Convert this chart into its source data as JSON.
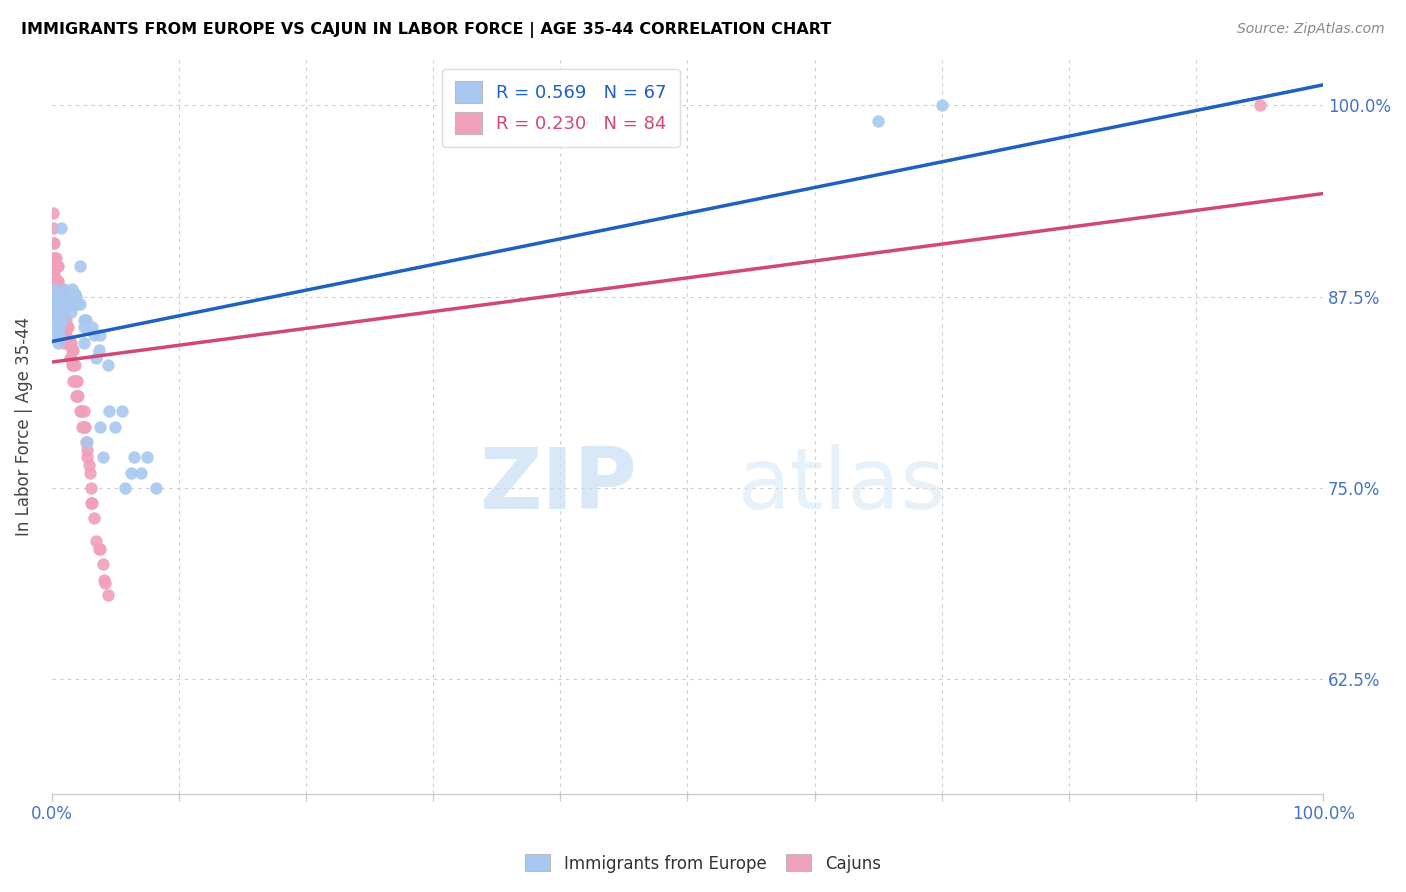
{
  "title": "IMMIGRANTS FROM EUROPE VS CAJUN IN LABOR FORCE | AGE 35-44 CORRELATION CHART",
  "source": "Source: ZipAtlas.com",
  "ylabel": "In Labor Force | Age 35-44",
  "xlim": [
    0.0,
    1.0
  ],
  "ylim": [
    0.55,
    1.03
  ],
  "watermark_zip": "ZIP",
  "watermark_atlas": "atlas",
  "legend_blue_r": "R = 0.569",
  "legend_blue_n": "N = 67",
  "legend_pink_r": "R = 0.230",
  "legend_pink_n": "N = 84",
  "blue_color": "#a8c8f0",
  "pink_color": "#f0a0b8",
  "blue_line_color": "#2060c0",
  "pink_line_color": "#d04878",
  "blue_scatter_x": [
    0.0,
    0.0,
    0.0,
    0.001,
    0.001,
    0.001,
    0.001,
    0.002,
    0.002,
    0.002,
    0.003,
    0.003,
    0.003,
    0.004,
    0.004,
    0.005,
    0.005,
    0.005,
    0.006,
    0.006,
    0.007,
    0.007,
    0.008,
    0.008,
    0.01,
    0.01,
    0.01,
    0.012,
    0.013,
    0.013,
    0.015,
    0.015,
    0.015,
    0.016,
    0.017,
    0.018,
    0.018,
    0.018,
    0.019,
    0.02,
    0.022,
    0.022,
    0.025,
    0.025,
    0.025,
    0.026,
    0.027,
    0.028,
    0.032,
    0.033,
    0.035,
    0.037,
    0.038,
    0.038,
    0.04,
    0.044,
    0.045,
    0.05,
    0.055,
    0.058,
    0.062,
    0.065,
    0.07,
    0.075,
    0.082,
    0.65,
    0.7
  ],
  "blue_scatter_y": [
    0.875,
    0.875,
    0.875,
    0.88,
    0.875,
    0.87,
    0.865,
    0.87,
    0.865,
    0.86,
    0.86,
    0.855,
    0.85,
    0.86,
    0.855,
    0.858,
    0.852,
    0.845,
    0.855,
    0.85,
    0.92,
    0.86,
    0.875,
    0.86,
    0.88,
    0.87,
    0.865,
    0.875,
    0.875,
    0.87,
    0.875,
    0.87,
    0.865,
    0.88,
    0.876,
    0.877,
    0.875,
    0.87,
    0.875,
    0.87,
    0.895,
    0.87,
    0.86,
    0.855,
    0.845,
    0.86,
    0.86,
    0.78,
    0.855,
    0.85,
    0.835,
    0.84,
    0.85,
    0.79,
    0.77,
    0.83,
    0.8,
    0.79,
    0.8,
    0.75,
    0.76,
    0.77,
    0.76,
    0.77,
    0.75,
    0.99,
    1.0
  ],
  "pink_scatter_x": [
    0.0,
    0.0,
    0.0,
    0.0,
    0.001,
    0.001,
    0.001,
    0.001,
    0.001,
    0.002,
    0.002,
    0.002,
    0.002,
    0.003,
    0.003,
    0.003,
    0.003,
    0.003,
    0.004,
    0.004,
    0.004,
    0.005,
    0.005,
    0.005,
    0.005,
    0.006,
    0.006,
    0.006,
    0.007,
    0.007,
    0.007,
    0.008,
    0.008,
    0.008,
    0.009,
    0.009,
    0.01,
    0.01,
    0.01,
    0.011,
    0.011,
    0.012,
    0.012,
    0.013,
    0.013,
    0.014,
    0.014,
    0.015,
    0.015,
    0.016,
    0.016,
    0.017,
    0.017,
    0.017,
    0.018,
    0.018,
    0.019,
    0.019,
    0.02,
    0.02,
    0.021,
    0.022,
    0.023,
    0.024,
    0.025,
    0.025,
    0.026,
    0.027,
    0.028,
    0.028,
    0.029,
    0.03,
    0.031,
    0.031,
    0.032,
    0.033,
    0.035,
    0.037,
    0.038,
    0.04,
    0.041,
    0.042,
    0.044,
    0.95
  ],
  "pink_scatter_y": [
    0.875,
    0.875,
    0.87,
    0.865,
    0.93,
    0.92,
    0.91,
    0.9,
    0.89,
    0.91,
    0.9,
    0.89,
    0.88,
    0.9,
    0.895,
    0.885,
    0.88,
    0.87,
    0.895,
    0.885,
    0.875,
    0.895,
    0.885,
    0.875,
    0.865,
    0.88,
    0.875,
    0.865,
    0.88,
    0.87,
    0.86,
    0.875,
    0.865,
    0.855,
    0.86,
    0.85,
    0.865,
    0.855,
    0.845,
    0.86,
    0.85,
    0.855,
    0.845,
    0.855,
    0.845,
    0.845,
    0.835,
    0.845,
    0.835,
    0.84,
    0.83,
    0.84,
    0.83,
    0.82,
    0.83,
    0.82,
    0.82,
    0.81,
    0.82,
    0.81,
    0.81,
    0.8,
    0.8,
    0.79,
    0.8,
    0.79,
    0.79,
    0.78,
    0.775,
    0.77,
    0.765,
    0.76,
    0.75,
    0.74,
    0.74,
    0.73,
    0.715,
    0.71,
    0.71,
    0.7,
    0.69,
    0.688,
    0.68,
    1.0
  ],
  "blue_line_x0": 0.0,
  "blue_line_y0": 0.87,
  "blue_line_x1": 1.0,
  "blue_line_y1": 1.0,
  "pink_line_x0": 0.0,
  "pink_line_y0": 0.84,
  "pink_line_x1": 1.0,
  "pink_line_y1": 0.96
}
